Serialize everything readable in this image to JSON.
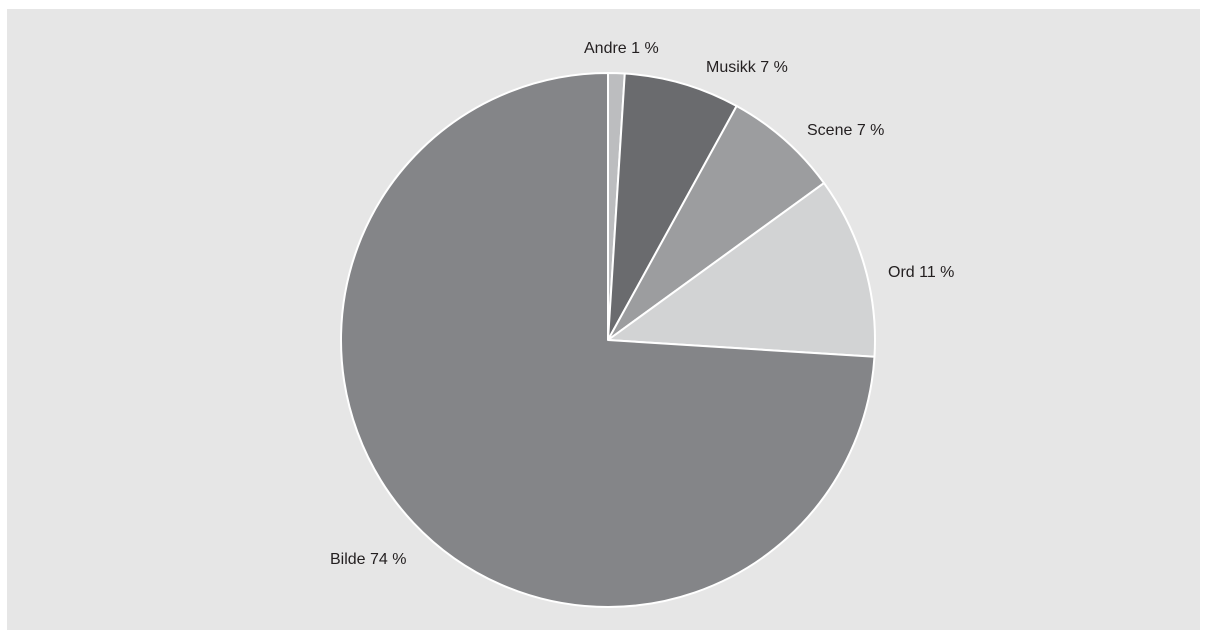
{
  "chart_data": {
    "type": "pie",
    "title": "",
    "start_angle_deg": 0,
    "direction": "clockwise",
    "slices": [
      {
        "label": "Andre 1 %",
        "value": 1,
        "color": "#bcbdbf"
      },
      {
        "label": "Musikk 7 %",
        "value": 7,
        "color": "#6a6b6e"
      },
      {
        "label": "Scene 7 %",
        "value": 7,
        "color": "#9c9d9f"
      },
      {
        "label": "Ord 11 %",
        "value": 11,
        "color": "#d2d3d4"
      },
      {
        "label": "Bilde 74 %",
        "value": 74,
        "color": "#848588"
      }
    ],
    "background": "#e6e6e6",
    "slice_border": "#ffffff"
  }
}
